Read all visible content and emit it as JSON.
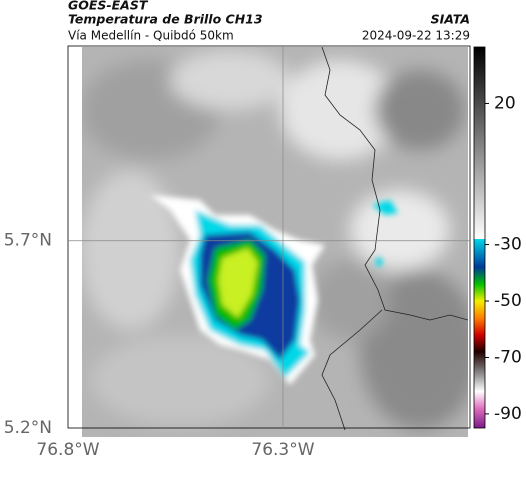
{
  "header": {
    "source": "GOES-EAST",
    "title": "Temperatura de Brillo CH13",
    "subtitle": "Vía Medellín - Quibdó 50km",
    "credit": "SIATA",
    "timestamp": "2024-09-22 13:29"
  },
  "map": {
    "xlim": [
      -76.8,
      -75.865
    ],
    "ylim": [
      5.2,
      6.22
    ],
    "xticks": [
      {
        "value": -76.8,
        "label": "76.8°W"
      },
      {
        "value": -76.3,
        "label": "76.3°W"
      }
    ],
    "yticks": [
      {
        "value": 5.7,
        "label": "5.7°N"
      },
      {
        "value": 5.2,
        "label": "5.2°N"
      }
    ],
    "grid": true
  },
  "colorbar": {
    "lim": [
      -95,
      40
    ],
    "ticks": [
      20,
      -30,
      -50,
      -70,
      -90
    ],
    "colormap": [
      {
        "value": 40,
        "color": "#000000"
      },
      {
        "value": -28,
        "color": "#ffffff"
      },
      {
        "value": -28,
        "color": "#00d8e8"
      },
      {
        "value": -38,
        "color": "#003a9a"
      },
      {
        "value": -44,
        "color": "#00c000"
      },
      {
        "value": -50,
        "color": "#f0f000"
      },
      {
        "value": -56,
        "color": "#ff8000"
      },
      {
        "value": -62,
        "color": "#d00000"
      },
      {
        "value": -68,
        "color": "#200000"
      },
      {
        "value": -76,
        "color": "#909090"
      },
      {
        "value": -82,
        "color": "#ffffff"
      },
      {
        "value": -88,
        "color": "#e070c0"
      },
      {
        "value": -95,
        "color": "#7a1a8a"
      }
    ]
  }
}
